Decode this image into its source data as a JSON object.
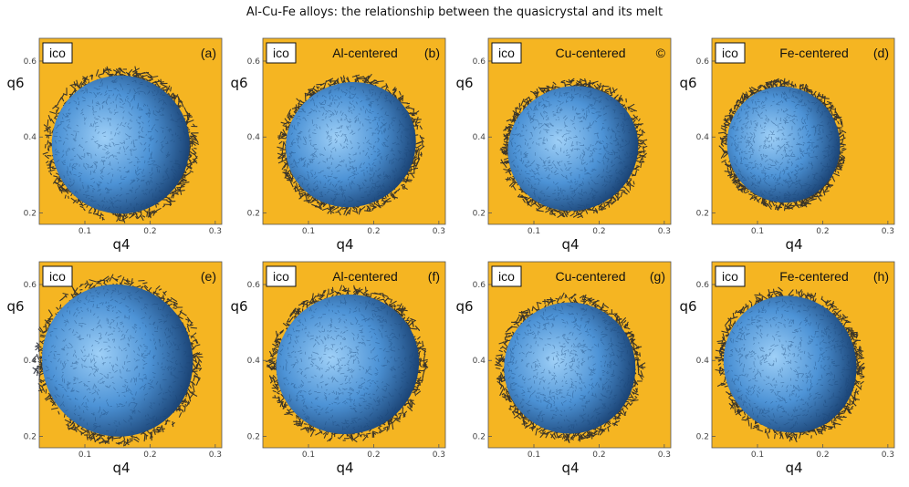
{
  "title": "Al-Cu-Fe alloys: the relationship between the quasicrystal and its melt",
  "colors": {
    "background": "#f5b522",
    "cloud_light": "#9fd0f7",
    "cloud_mid": "#4d93d6",
    "cloud_dark": "#1b4476",
    "edge": "#1a1f2a"
  },
  "chart_data": [
    {
      "type": "scatter",
      "panel_label": "(a)",
      "tag": "ico",
      "center_label": "",
      "xlabel": "q4",
      "ylabel": "q6",
      "xticks": [
        0.1,
        0.2,
        0.3
      ],
      "yticks": [
        0.2,
        0.4,
        0.6
      ],
      "xlim": [
        0.03,
        0.31
      ],
      "ylim": [
        0.17,
        0.66
      ],
      "cloud": {
        "center_x": 0.155,
        "center_y": 0.38,
        "rx": 0.11,
        "ry": 0.19,
        "tilt_deg": -28
      },
      "grid": false
    },
    {
      "type": "scatter",
      "panel_label": "(b)",
      "tag": "ico",
      "center_label": "Al-centered",
      "xlabel": "q4",
      "ylabel": "q6",
      "xticks": [
        0.1,
        0.2,
        0.3
      ],
      "yticks": [
        0.2,
        0.4,
        0.6
      ],
      "xlim": [
        0.03,
        0.31
      ],
      "ylim": [
        0.17,
        0.66
      ],
      "cloud": {
        "center_x": 0.165,
        "center_y": 0.38,
        "rx": 0.105,
        "ry": 0.17,
        "tilt_deg": -24
      },
      "grid": false
    },
    {
      "type": "scatter",
      "panel_label": "©",
      "tag": "ico",
      "center_label": "Cu-centered",
      "xlabel": "q4",
      "ylabel": "q6",
      "xticks": [
        0.1,
        0.2,
        0.3
      ],
      "yticks": [
        0.2,
        0.4,
        0.6
      ],
      "xlim": [
        0.03,
        0.31
      ],
      "ylim": [
        0.17,
        0.66
      ],
      "cloud": {
        "center_x": 0.16,
        "center_y": 0.37,
        "rx": 0.105,
        "ry": 0.17,
        "tilt_deg": -22
      },
      "grid": false
    },
    {
      "type": "scatter",
      "panel_label": "(d)",
      "tag": "ico",
      "center_label": "Fe-centered",
      "xlabel": "q4",
      "ylabel": "q6",
      "xticks": [
        0.1,
        0.2,
        0.3
      ],
      "yticks": [
        0.2,
        0.4,
        0.6
      ],
      "xlim": [
        0.03,
        0.31
      ],
      "ylim": [
        0.17,
        0.66
      ],
      "cloud": {
        "center_x": 0.14,
        "center_y": 0.38,
        "rx": 0.09,
        "ry": 0.16,
        "tilt_deg": -20
      },
      "grid": false
    },
    {
      "type": "scatter",
      "panel_label": "(e)",
      "tag": "ico",
      "center_label": "",
      "xlabel": "q4",
      "ylabel": "q6",
      "xticks": [
        0.1,
        0.2,
        0.3
      ],
      "yticks": [
        0.2,
        0.4,
        0.6
      ],
      "xlim": [
        0.03,
        0.31
      ],
      "ylim": [
        0.17,
        0.66
      ],
      "cloud": {
        "center_x": 0.15,
        "center_y": 0.4,
        "rx": 0.12,
        "ry": 0.21,
        "tilt_deg": -32
      },
      "grid": false
    },
    {
      "type": "scatter",
      "panel_label": "(f)",
      "tag": "ico",
      "center_label": "Al-centered",
      "xlabel": "q4",
      "ylabel": "q6",
      "xticks": [
        0.1,
        0.2,
        0.3
      ],
      "yticks": [
        0.2,
        0.4,
        0.6
      ],
      "xlim": [
        0.03,
        0.31
      ],
      "ylim": [
        0.17,
        0.66
      ],
      "cloud": {
        "center_x": 0.16,
        "center_y": 0.39,
        "rx": 0.115,
        "ry": 0.19,
        "tilt_deg": -28
      },
      "grid": false
    },
    {
      "type": "scatter",
      "panel_label": "(g)",
      "tag": "ico",
      "center_label": "Cu-centered",
      "xlabel": "q4",
      "ylabel": "q6",
      "xticks": [
        0.1,
        0.2,
        0.3
      ],
      "yticks": [
        0.2,
        0.4,
        0.6
      ],
      "xlim": [
        0.03,
        0.31
      ],
      "ylim": [
        0.17,
        0.66
      ],
      "cloud": {
        "center_x": 0.155,
        "center_y": 0.38,
        "rx": 0.105,
        "ry": 0.18,
        "tilt_deg": -24
      },
      "grid": false
    },
    {
      "type": "scatter",
      "panel_label": "(h)",
      "tag": "ico",
      "center_label": "Fe-centered",
      "xlabel": "q4",
      "ylabel": "q6",
      "xticks": [
        0.1,
        0.2,
        0.3
      ],
      "yticks": [
        0.2,
        0.4,
        0.6
      ],
      "xlim": [
        0.03,
        0.31
      ],
      "ylim": [
        0.17,
        0.66
      ],
      "cloud": {
        "center_x": 0.15,
        "center_y": 0.39,
        "rx": 0.105,
        "ry": 0.19,
        "tilt_deg": -28
      },
      "grid": false
    }
  ]
}
